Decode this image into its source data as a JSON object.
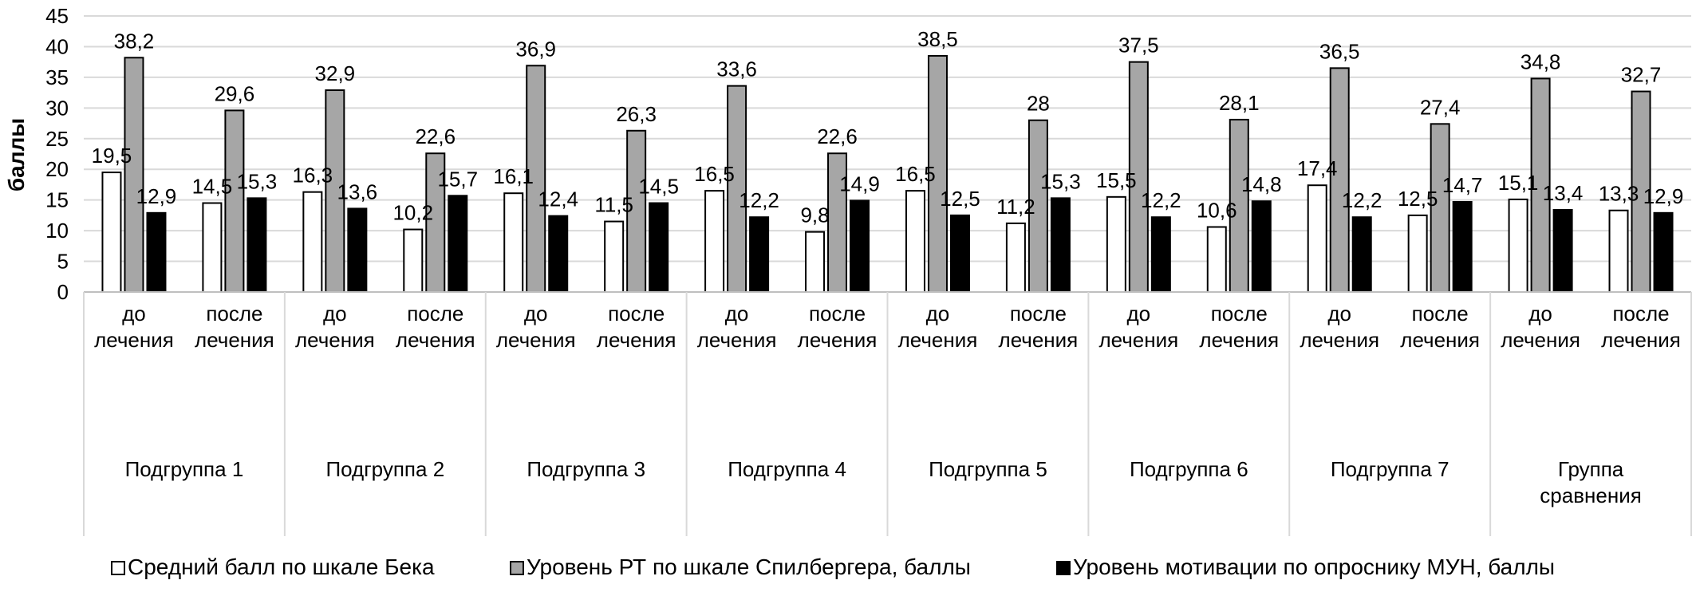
{
  "chart_data": {
    "type": "bar",
    "ylabel": "баллы",
    "ylim": [
      0,
      45
    ],
    "yticks": [
      0,
      5,
      10,
      15,
      20,
      25,
      30,
      35,
      40,
      45
    ],
    "grid": true,
    "legend_position": "bottom",
    "groups": [
      "Подгруппа 1",
      "Подгруппа 2",
      "Подгруппа 3",
      "Подгруппа 4",
      "Подгруппа 5",
      "Подгруппа 6",
      "Подгруппа 7",
      "Группа сравнения"
    ],
    "subcategories": [
      "до лечения",
      "после лечения"
    ],
    "categories": [
      "Подгруппа 1 до лечения",
      "Подгруппа 1 после лечения",
      "Подгруппа 2 до лечения",
      "Подгруппа 2 после лечения",
      "Подгруппа 3 до лечения",
      "Подгруппа 3 после лечения",
      "Подгруппа 4 до лечения",
      "Подгруппа 4 после лечения",
      "Подгруппа 5 до лечения",
      "Подгруппа 5 после лечения",
      "Подгруппа 6 до лечения",
      "Подгруппа 6 после лечения",
      "Подгруппа 7 до лечения",
      "Подгруппа 7 после лечения",
      "Группа сравнения до лечения",
      "Группа сравнения после лечения"
    ],
    "series": [
      {
        "name": "Средний  балл по шкале Бека",
        "color": "#ffffff",
        "values": [
          19.5,
          14.5,
          16.3,
          10.2,
          16.1,
          11.5,
          16.5,
          9.8,
          16.5,
          11.2,
          15.5,
          10.6,
          17.4,
          12.5,
          15.1,
          13.3
        ],
        "labels": [
          "19,5",
          "14,5",
          "16,3",
          "10,2",
          "16,1",
          "11,5",
          "16,5",
          "9,8",
          "16,5",
          "11,2",
          "15,5",
          "10,6",
          "17,4",
          "12,5",
          "15,1",
          "13,3"
        ]
      },
      {
        "name": "Уровень РТ по шкале Спилбергера, баллы",
        "color": "#a6a6a6",
        "values": [
          38.2,
          29.6,
          32.9,
          22.6,
          36.9,
          26.3,
          33.6,
          22.6,
          38.5,
          28,
          37.5,
          28.1,
          36.5,
          27.4,
          34.8,
          32.7
        ],
        "labels": [
          "38,2",
          "29,6",
          "32,9",
          "22,6",
          "36,9",
          "26,3",
          "33,6",
          "22,6",
          "38,5",
          "28",
          "37,5",
          "28,1",
          "36,5",
          "27,4",
          "34,8",
          "32,7"
        ]
      },
      {
        "name": "Уровень мотивации по опроснику МУН, баллы",
        "color": "#000000",
        "values": [
          12.9,
          15.3,
          13.6,
          15.7,
          12.4,
          14.5,
          12.2,
          14.9,
          12.5,
          15.3,
          12.2,
          14.8,
          12.2,
          14.7,
          13.4,
          12.9
        ],
        "labels": [
          "12,9",
          "15,3",
          "13,6",
          "15,7",
          "12,4",
          "14,5",
          "12,2",
          "14,9",
          "12,5",
          "15,3",
          "12,2",
          "14,8",
          "12,2",
          "14,7",
          "13,4",
          "12,9"
        ]
      }
    ]
  }
}
